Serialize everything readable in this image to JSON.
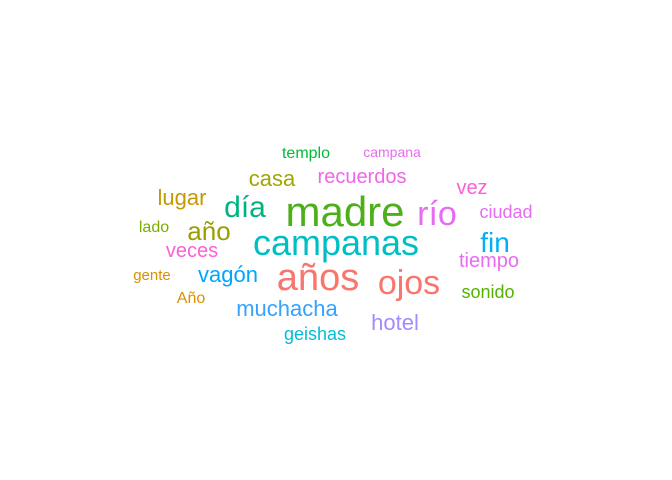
{
  "chart_data": {
    "type": "wordcloud",
    "title": "",
    "words": [
      {
        "text": "madre",
        "color": "#4daf1a"
      },
      {
        "text": "campanas",
        "color": "#00bfc4"
      },
      {
        "text": "años",
        "color": "#f8766d"
      },
      {
        "text": "río",
        "color": "#e76bf3"
      },
      {
        "text": "ojos",
        "color": "#f8766d"
      },
      {
        "text": "día",
        "color": "#00b381"
      },
      {
        "text": "fin",
        "color": "#00b0f6"
      },
      {
        "text": "año",
        "color": "#9b9e00"
      },
      {
        "text": "casa",
        "color": "#a3a500"
      },
      {
        "text": "lugar",
        "color": "#c49a00"
      },
      {
        "text": "vagón",
        "color": "#00a5ff"
      },
      {
        "text": "muchacha",
        "color": "#35a2ff"
      },
      {
        "text": "hotel",
        "color": "#a58aff"
      },
      {
        "text": "recuerdos",
        "color": "#f066ea"
      },
      {
        "text": "vez",
        "color": "#fb61d7"
      },
      {
        "text": "tiempo",
        "color": "#e76bf3"
      },
      {
        "text": "veces",
        "color": "#fb61d7"
      },
      {
        "text": "ciudad",
        "color": "#e76bf3"
      },
      {
        "text": "sonido",
        "color": "#53b400"
      },
      {
        "text": "geishas",
        "color": "#00bcd8"
      },
      {
        "text": "templo",
        "color": "#00ba38"
      },
      {
        "text": "campana",
        "color": "#e76bf3"
      },
      {
        "text": "lado",
        "color": "#7cae00"
      },
      {
        "text": "Año",
        "color": "#d89000"
      },
      {
        "text": "gente",
        "color": "#d89000"
      }
    ]
  }
}
